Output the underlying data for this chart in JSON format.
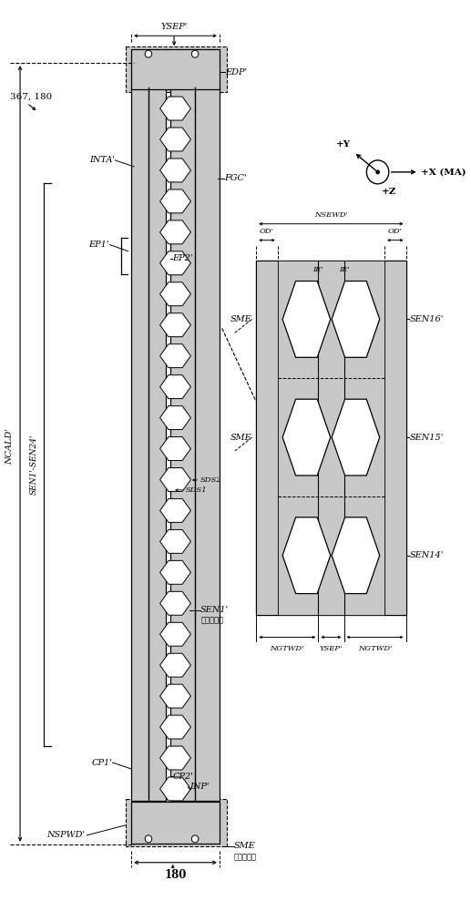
{
  "bg_color": "#ffffff",
  "dot_fill": "#c8c8c8",
  "fig_w": 5.17,
  "fig_h": 10.0,
  "dpi": 100,
  "labels": {
    "NCALD": "NCALD'",
    "YSEP_top": "YSEP'",
    "EDP": "EDP'",
    "FGC": "FGC'",
    "INTA": "INTA'",
    "EP1": "EP1'",
    "EP2": "EP2'",
    "SEN_range": "SEN1'-SEN24'",
    "SEN1": "SEN1'",
    "SEN1_rep": "（代表的）",
    "SDS1": "SDS1",
    "SDS2": "SDS2",
    "CP1": "CP1'",
    "CP2": "CP2'",
    "INP": "INP'",
    "NSPWD": "NSPWD'",
    "label_180": "180",
    "SME_bot": "SME",
    "SME_bot_sub": "（代表的）",
    "SME1": "SME",
    "SME2": "SME",
    "OD1": "OD'",
    "OD2": "OD'",
    "NSEWD": "NSEWD'",
    "IE1": "IE'",
    "IE2": "IE'",
    "SEN14": "SEN14'",
    "SEN15": "SEN15'",
    "SEN16": "SEN16'",
    "NGTWD1": "NGTWD'",
    "NGTWD2": "NGTWD'",
    "YSEP_bot": "YSEP'",
    "label_367_180": "367, 180",
    "plusX": "+X (MA)",
    "plusY": "+Y",
    "plusZ": "+Z"
  }
}
